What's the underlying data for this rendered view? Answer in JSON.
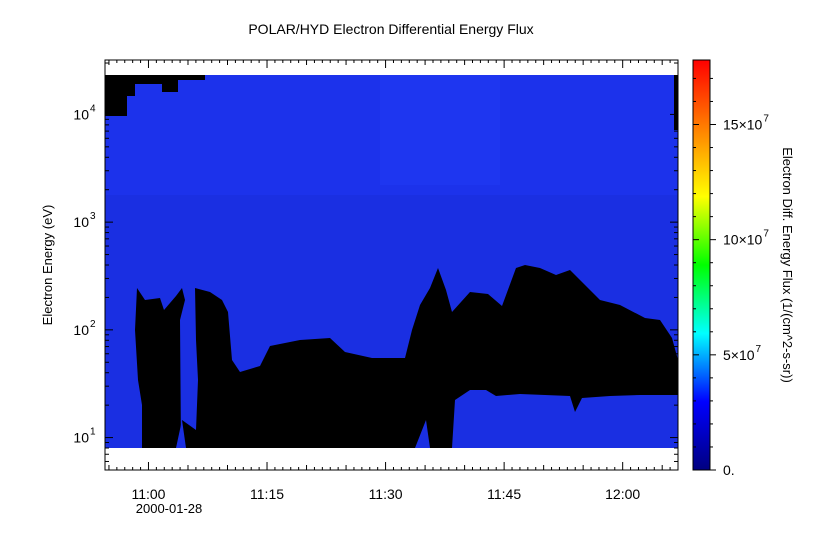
{
  "chart_data": {
    "type": "heatmap",
    "title": "POLAR/HYD  Electron Differential Energy Flux",
    "ylabel": "Electron Energy (eV)",
    "yscale": "log",
    "y_tick_labels": [
      "10",
      "10",
      "10",
      "10"
    ],
    "y_tick_exponents": [
      "1",
      "2",
      "3",
      "4"
    ],
    "y_tick_values": [
      10,
      100,
      1000,
      10000
    ],
    "ylim": [
      5,
      32000
    ],
    "x_tick_labels": [
      "11:00",
      "11:15",
      "11:30",
      "11:45",
      "12:00"
    ],
    "x_tick_minutes": [
      0,
      15,
      30,
      45,
      60
    ],
    "xlim_minutes": [
      -5.5,
      67
    ],
    "date_label": "2000-01-28",
    "colorbar": {
      "label": "Electron Diff. Energy Flux (1/(cm^2-s-sr))",
      "tick_labels": [
        "0.",
        "5×10",
        "10×10",
        "15×10"
      ],
      "tick_exponents": [
        "",
        "7",
        "7",
        "7"
      ],
      "tick_values": [
        0,
        50000000,
        100000000,
        150000000
      ],
      "range": [
        0,
        178000000
      ],
      "colormap": [
        "#000080",
        "#0000ff",
        "#00ffff",
        "#00ff00",
        "#ffff00",
        "#ff8000",
        "#ff0000"
      ]
    },
    "grid": false,
    "colors": {
      "background_flux": "#1a2ee0",
      "upper_band": "#1d33f0",
      "low_flux": "#000000"
    }
  }
}
